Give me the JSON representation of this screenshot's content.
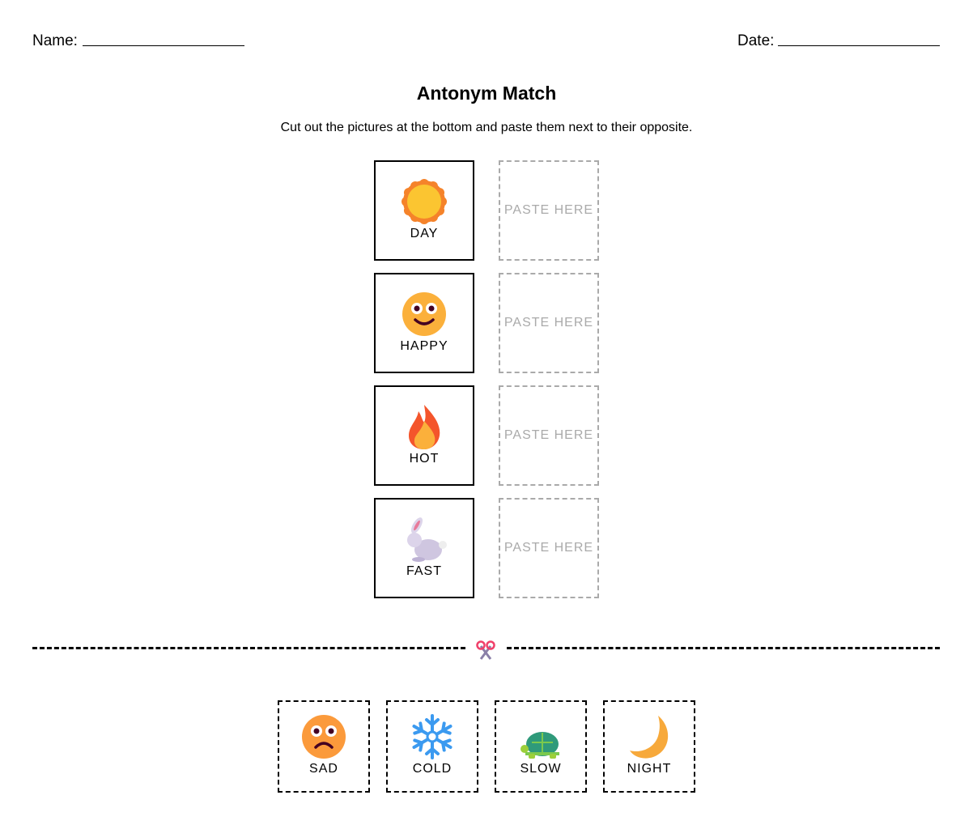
{
  "header": {
    "name_label": "Name:",
    "date_label": "Date:"
  },
  "title": "Antonym Match",
  "instructions": "Cut out the pictures at the bottom and paste them next to their opposite.",
  "paste_label": "PASTE HERE",
  "words": [
    {
      "label": "DAY",
      "icon": "sun-icon"
    },
    {
      "label": "HAPPY",
      "icon": "happy-face-icon"
    },
    {
      "label": "HOT",
      "icon": "fire-icon"
    },
    {
      "label": "FAST",
      "icon": "rabbit-icon"
    }
  ],
  "cutouts": [
    {
      "label": "SAD",
      "icon": "sad-face-icon"
    },
    {
      "label": "COLD",
      "icon": "snowflake-icon"
    },
    {
      "label": "SLOW",
      "icon": "turtle-icon"
    },
    {
      "label": "NIGHT",
      "icon": "moon-icon"
    }
  ],
  "cut_icon": "scissors-icon"
}
